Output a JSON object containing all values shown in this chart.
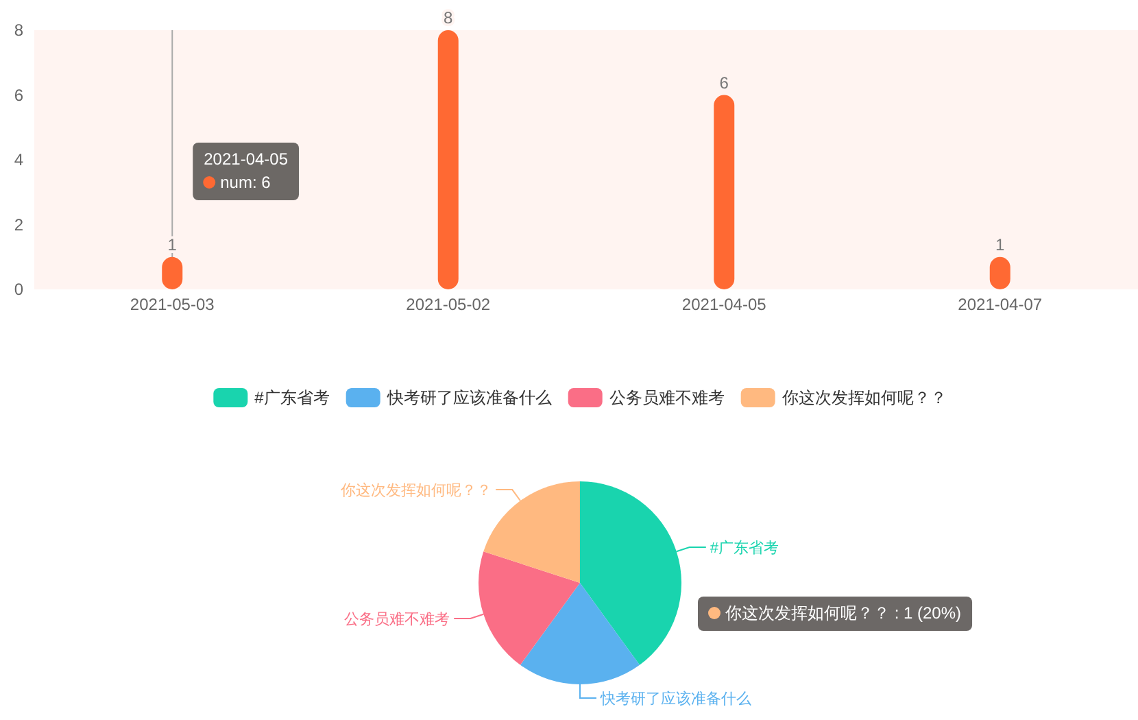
{
  "chart_data": [
    {
      "type": "bar",
      "categories": [
        "2021-05-03",
        "2021-05-02",
        "2021-04-05",
        "2021-04-07"
      ],
      "values": [
        1,
        8,
        6,
        1
      ],
      "color": "#ff6933",
      "ylim": [
        0,
        8
      ],
      "yticks": [
        0,
        2,
        4,
        6,
        8
      ],
      "data_labels": true,
      "ref_lines": [
        {
          "axis": "x",
          "value": "2021-05-03",
          "color": "#aaaaaa"
        }
      ],
      "annotations": [
        "2021-04-05",
        "num: 6"
      ]
    },
    {
      "type": "pie",
      "categories": [
        "#广东省考",
        "快考研了应该准备什么",
        "公务员难不难考",
        "你这次发挥如何呢？？"
      ],
      "values": [
        40,
        20,
        20,
        20
      ],
      "colors": [
        "#19d4ae",
        "#5ab1ef",
        "#fa6e86",
        "#ffb980"
      ],
      "legend": "top",
      "annotations": [
        "你这次发挥如何呢？？ : 1 (20%)"
      ]
    }
  ]
}
